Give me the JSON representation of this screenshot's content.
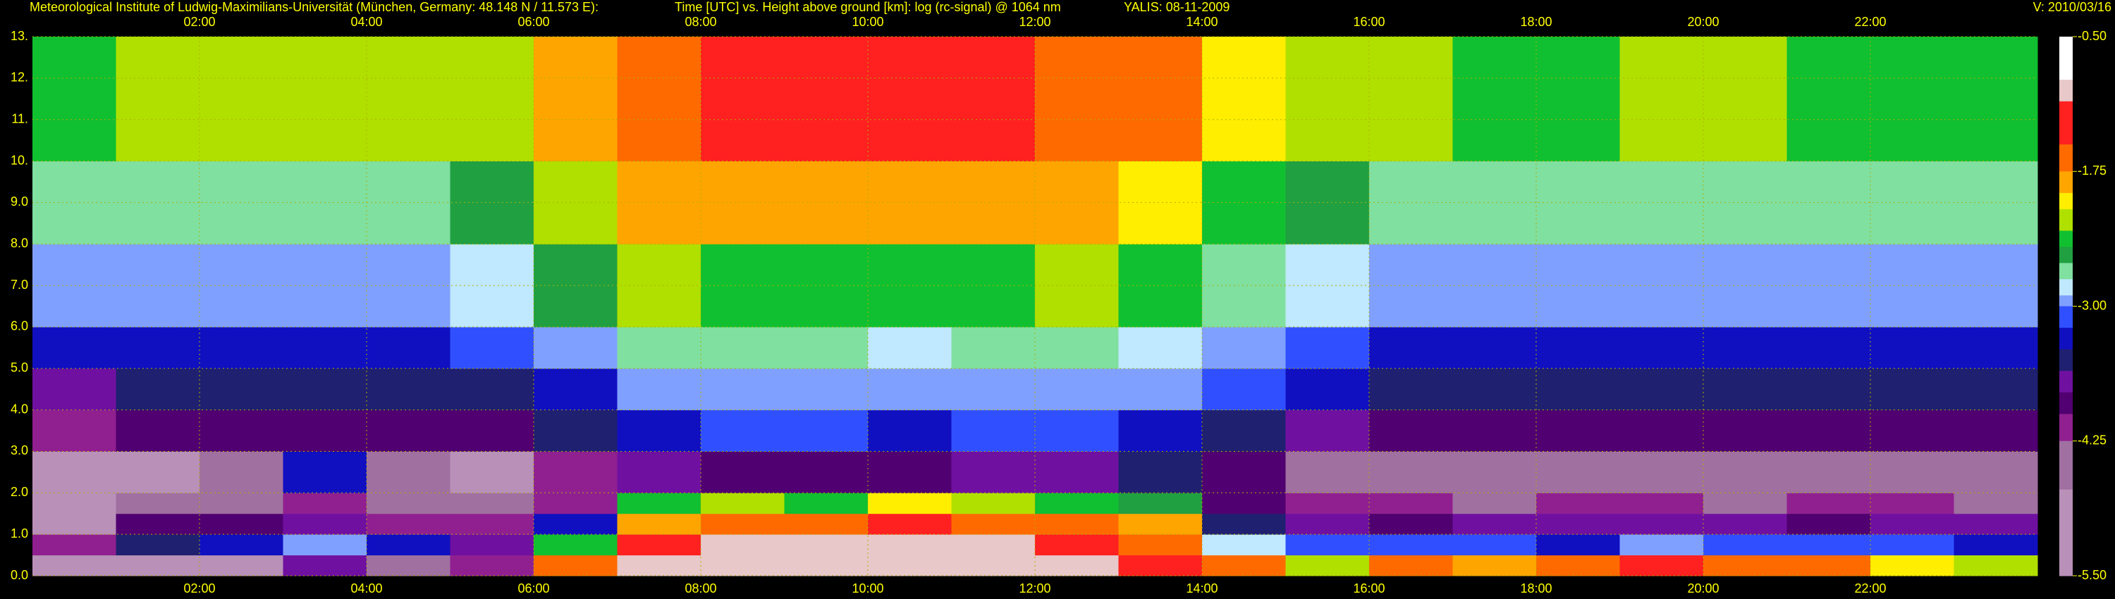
{
  "chart_data": {
    "type": "heatmap",
    "title": "Meteorological Institute of Ludwig-Maximilians-Universität (München, Germany: 48.148 N / 11.573 E):",
    "subtitle": "Time [UTC] vs. Height above ground [km]: log (rc-signal) @ 1064 nm",
    "instrument": "YALIS: 08-11-2009",
    "version": "V: 2010/03/16",
    "x_bins": [
      0,
      1,
      2,
      3,
      4,
      5,
      6,
      7,
      8,
      9,
      10,
      11,
      12,
      13,
      14,
      15,
      16,
      17,
      18,
      19,
      20,
      21,
      22,
      23,
      24
    ],
    "y_bins": [
      0,
      0.5,
      1,
      1.5,
      2,
      3,
      4,
      5,
      6,
      8,
      10,
      13
    ],
    "xlim": [
      0,
      24
    ],
    "ylim": [
      0,
      13
    ],
    "xticks": [
      {
        "value": 2,
        "label": "02:00"
      },
      {
        "value": 4,
        "label": "04:00"
      },
      {
        "value": 6,
        "label": "06:00"
      },
      {
        "value": 8,
        "label": "08:00"
      },
      {
        "value": 10,
        "label": "10:00"
      },
      {
        "value": 12,
        "label": "12:00"
      },
      {
        "value": 14,
        "label": "14:00"
      },
      {
        "value": 16,
        "label": "16:00"
      },
      {
        "value": 18,
        "label": "18:00"
      },
      {
        "value": 20,
        "label": "20:00"
      },
      {
        "value": 22,
        "label": "22:00"
      }
    ],
    "yticks": [
      {
        "value": 0,
        "label": "0.0"
      },
      {
        "value": 1,
        "label": "1.0"
      },
      {
        "value": 2,
        "label": "2.0"
      },
      {
        "value": 3,
        "label": "3.0"
      },
      {
        "value": 4,
        "label": "4.0"
      },
      {
        "value": 5,
        "label": "5.0"
      },
      {
        "value": 6,
        "label": "6.0"
      },
      {
        "value": 7,
        "label": "7.0"
      },
      {
        "value": 8,
        "label": "8.0"
      },
      {
        "value": 9,
        "label": "9.0"
      },
      {
        "value": 10,
        "label": "10."
      },
      {
        "value": 11,
        "label": "11."
      },
      {
        "value": 12,
        "label": "12."
      },
      {
        "value": 13,
        "label": "13."
      }
    ],
    "grid": true,
    "clim": [
      -5.5,
      -0.5
    ],
    "cticks": [
      {
        "value": -0.5,
        "label": "-0.50"
      },
      {
        "value": -1.75,
        "label": "-1.75"
      },
      {
        "value": -3,
        "label": "-3.00"
      },
      {
        "value": -4.25,
        "label": "-4.25"
      },
      {
        "value": -5.5,
        "label": "-5.50"
      }
    ],
    "colorscale": [
      {
        "value": -0.5,
        "color": "#ffffff"
      },
      {
        "value": -0.9,
        "color": "#e8c8c8"
      },
      {
        "value": -1.1,
        "color": "#ff2020"
      },
      {
        "value": -1.5,
        "color": "#ff6a00"
      },
      {
        "value": -1.75,
        "color": "#ffa500"
      },
      {
        "value": -1.95,
        "color": "#ffee00"
      },
      {
        "value": -2.1,
        "color": "#b0e000"
      },
      {
        "value": -2.3,
        "color": "#10c030"
      },
      {
        "value": -2.45,
        "color": "#20a040"
      },
      {
        "value": -2.6,
        "color": "#80e0a0"
      },
      {
        "value": -2.75,
        "color": "#c0e8ff"
      },
      {
        "value": -2.9,
        "color": "#80a0ff"
      },
      {
        "value": -3,
        "color": "#3050ff"
      },
      {
        "value": -3.2,
        "color": "#1010c0"
      },
      {
        "value": -3.4,
        "color": "#202070"
      },
      {
        "value": -3.6,
        "color": "#7010a0"
      },
      {
        "value": -3.8,
        "color": "#500070"
      },
      {
        "value": -4,
        "color": "#902090"
      },
      {
        "value": -4.25,
        "color": "#a070a0"
      },
      {
        "value": -4.7,
        "color": "#b890b8"
      },
      {
        "value": -5.5,
        "color": "#c8b0c8"
      }
    ],
    "z": [
      [
        -4.4,
        -4.3,
        -4.3,
        -3.6,
        -4.2,
        -4.0,
        -1.5,
        -0.9,
        -0.7,
        -0.8,
        -0.7,
        -0.8,
        -0.9,
        -1.0,
        -1.5,
        -2.0,
        -1.2,
        -1.6,
        -1.4,
        -1.0,
        -1.2,
        -1.5,
        -1.8,
        -2.0
      ],
      [
        -4.0,
        -3.3,
        -3.1,
        -2.9,
        -3.2,
        -3.6,
        -2.2,
        -1.0,
        -0.8,
        -0.7,
        -0.6,
        -0.7,
        -1.0,
        -1.2,
        -2.7,
        -3.0,
        -3.0,
        -3.0,
        -3.1,
        -2.9,
        -3.0,
        -3.0,
        -3.0,
        -3.1
      ],
      [
        -4.3,
        -3.7,
        -3.8,
        -3.5,
        -3.9,
        -4.0,
        -3.2,
        -1.6,
        -1.3,
        -1.2,
        -1.1,
        -1.3,
        -1.5,
        -1.7,
        -3.4,
        -3.6,
        -3.7,
        -3.6,
        -3.6,
        -3.5,
        -3.6,
        -3.7,
        -3.6,
        -3.6
      ],
      [
        -4.6,
        -4.2,
        -4.1,
        -4.0,
        -4.1,
        -4.2,
        -3.9,
        -2.3,
        -2.0,
        -2.2,
        -1.9,
        -2.1,
        -2.2,
        -2.4,
        -3.8,
        -4.0,
        -4.0,
        -4.1,
        -4.0,
        -4.0,
        -4.1,
        -4.0,
        -4.0,
        -4.1
      ],
      [
        -4.5,
        -4.3,
        -4.2,
        -3.2,
        -4.2,
        -4.3,
        -4.0,
        -3.5,
        -3.7,
        -3.8,
        -3.8,
        -3.6,
        -3.5,
        -3.4,
        -3.8,
        -4.1,
        -4.2,
        -4.2,
        -4.2,
        -4.2,
        -4.2,
        -4.2,
        -4.2,
        -4.2
      ],
      [
        -3.9,
        -3.8,
        -3.8,
        -3.7,
        -3.8,
        -3.7,
        -3.4,
        -3.1,
        -3.0,
        -3.0,
        -3.1,
        -3.0,
        -3.0,
        -3.1,
        -3.3,
        -3.6,
        -3.8,
        -3.8,
        -3.8,
        -3.8,
        -3.8,
        -3.8,
        -3.8,
        -3.8
      ],
      [
        -3.5,
        -3.4,
        -3.4,
        -3.3,
        -3.4,
        -3.3,
        -3.1,
        -2.9,
        -2.8,
        -2.8,
        -2.9,
        -2.8,
        -2.8,
        -2.9,
        -3.0,
        -3.2,
        -3.4,
        -3.4,
        -3.4,
        -3.4,
        -3.4,
        -3.4,
        -3.4,
        -3.4
      ],
      [
        -3.2,
        -3.1,
        -3.1,
        -3.1,
        -3.1,
        -3.0,
        -2.8,
        -2.6,
        -2.6,
        -2.6,
        -2.7,
        -2.6,
        -2.6,
        -2.7,
        -2.8,
        -3.0,
        -3.1,
        -3.1,
        -3.1,
        -3.1,
        -3.1,
        -3.1,
        -3.1,
        -3.1
      ],
      [
        -2.9,
        -2.8,
        -2.8,
        -2.8,
        -2.8,
        -2.7,
        -2.4,
        -2.1,
        -2.2,
        -2.3,
        -2.3,
        -2.2,
        -2.1,
        -2.2,
        -2.5,
        -2.7,
        -2.8,
        -2.8,
        -2.8,
        -2.8,
        -2.8,
        -2.8,
        -2.8,
        -2.8
      ],
      [
        -2.6,
        -2.5,
        -2.5,
        -2.5,
        -2.5,
        -2.4,
        -2.0,
        -1.6,
        -1.6,
        -1.7,
        -1.7,
        -1.6,
        -1.6,
        -1.8,
        -2.2,
        -2.4,
        -2.5,
        -2.5,
        -2.5,
        -2.5,
        -2.5,
        -2.5,
        -2.5,
        -2.5
      ],
      [
        -2.2,
        -2.1,
        -2.1,
        -2.1,
        -2.1,
        -2.0,
        -1.6,
        -1.3,
        -1.1,
        -1.0,
        -1.0,
        -1.1,
        -1.2,
        -1.4,
        -1.9,
        -2.1,
        -2.1,
        -2.2,
        -2.2,
        -2.1,
        -2.1,
        -2.2,
        -2.2,
        -2.2
      ]
    ]
  }
}
